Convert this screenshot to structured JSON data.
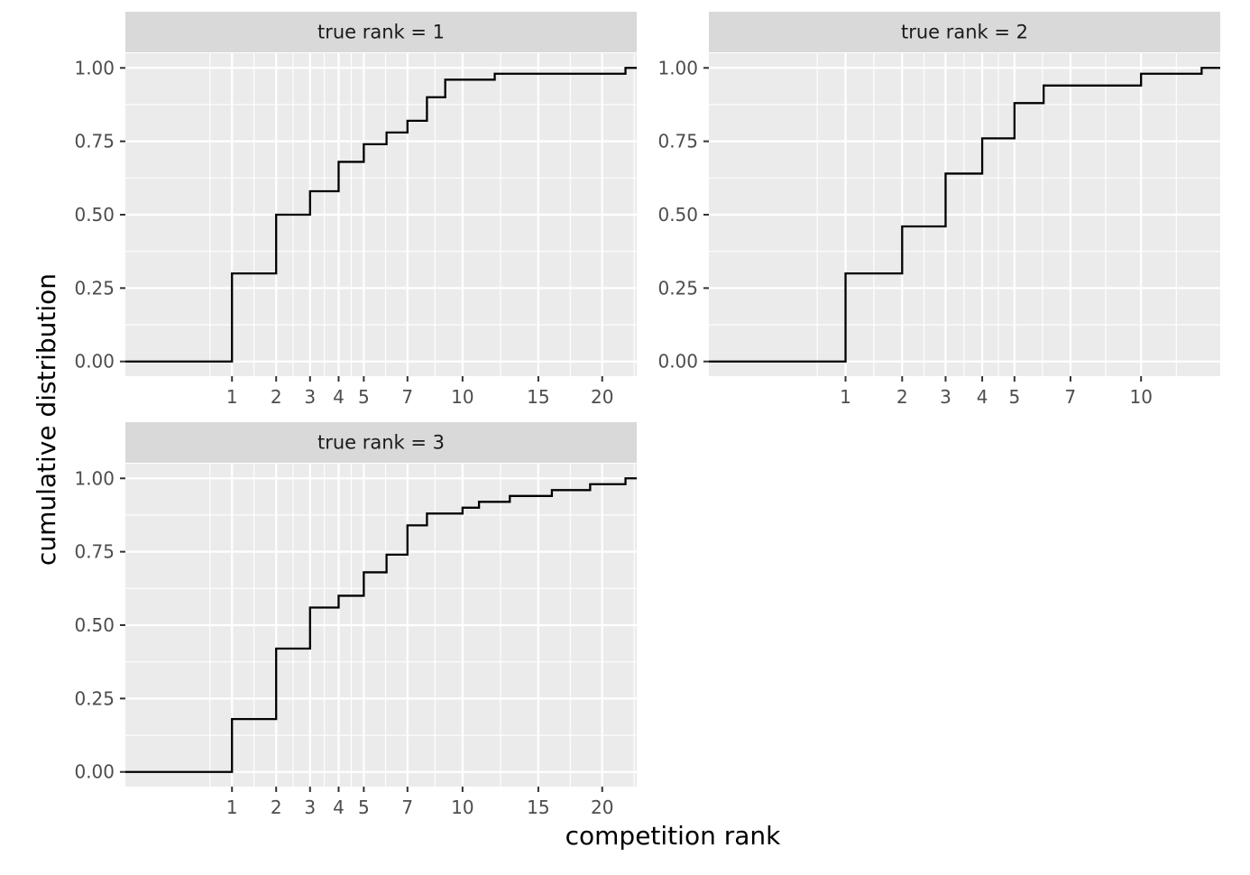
{
  "chart_data": {
    "type": "line",
    "style": "step (ECDF), faceted",
    "xlabel": "competition rank",
    "ylabel": "cumulative distribution",
    "y_ticks": [
      0.0,
      0.25,
      0.5,
      0.75,
      1.0
    ],
    "y_tick_labels": [
      "0.00",
      "0.25",
      "0.50",
      "0.75",
      "1.00"
    ],
    "ylim": [
      -0.05,
      1.05
    ],
    "x_scale": "sqrt",
    "grid": true,
    "legend": "none",
    "colors": {
      "panel_bg": "#ebebeb",
      "strip_bg": "#d9d9d9",
      "grid": "#ffffff",
      "line": "#000000"
    },
    "facets": [
      {
        "strip": "true rank = 1",
        "xlim": [
          0,
          23
        ],
        "x_ticks": [
          1,
          2,
          3,
          4,
          5,
          7,
          10,
          15,
          20
        ],
        "steps": [
          [
            1,
            0.3
          ],
          [
            2,
            0.5
          ],
          [
            3,
            0.58
          ],
          [
            4,
            0.68
          ],
          [
            5,
            0.74
          ],
          [
            6,
            0.78
          ],
          [
            7,
            0.82
          ],
          [
            8,
            0.9
          ],
          [
            9,
            0.96
          ],
          [
            12,
            0.98
          ],
          [
            22,
            1.0
          ]
        ]
      },
      {
        "strip": "true rank = 2",
        "xlim": [
          0,
          14
        ],
        "x_ticks": [
          1,
          2,
          3,
          4,
          5,
          7,
          10
        ],
        "steps": [
          [
            1,
            0.3
          ],
          [
            2,
            0.46
          ],
          [
            3,
            0.64
          ],
          [
            4,
            0.76
          ],
          [
            5,
            0.88
          ],
          [
            6,
            0.94
          ],
          [
            10,
            0.98
          ],
          [
            13,
            1.0
          ]
        ]
      },
      {
        "strip": "true rank = 3",
        "xlim": [
          0,
          23
        ],
        "x_ticks": [
          1,
          2,
          3,
          4,
          5,
          7,
          10,
          15,
          20
        ],
        "steps": [
          [
            1,
            0.18
          ],
          [
            2,
            0.42
          ],
          [
            3,
            0.56
          ],
          [
            4,
            0.6
          ],
          [
            5,
            0.68
          ],
          [
            6,
            0.74
          ],
          [
            7,
            0.84
          ],
          [
            8,
            0.88
          ],
          [
            10,
            0.9
          ],
          [
            11,
            0.92
          ],
          [
            13,
            0.94
          ],
          [
            16,
            0.96
          ],
          [
            19,
            0.98
          ],
          [
            22,
            1.0
          ]
        ]
      }
    ]
  }
}
